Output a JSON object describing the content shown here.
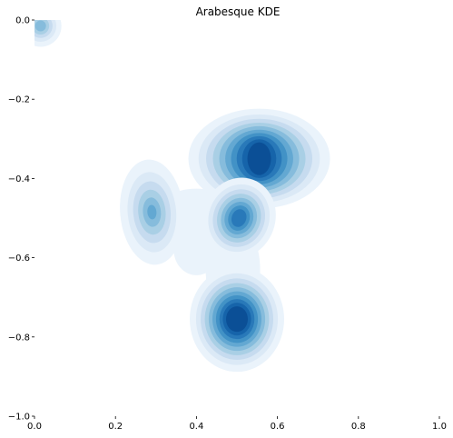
{
  "chart_data": {
    "type": "kde",
    "title": "Arabesque KDE",
    "xlabel": "",
    "ylabel": "",
    "xlim": [
      0.0,
      1.0
    ],
    "ylim": [
      -1.0,
      0.0
    ],
    "x_ticks": [
      "0.0",
      "0.2",
      "0.4",
      "0.6",
      "0.8",
      "1.0"
    ],
    "y_ticks": [
      "0.0",
      "−0.2",
      "−0.4",
      "−0.6",
      "−0.8",
      "−1.0"
    ],
    "x_tick_values": [
      0.0,
      0.2,
      0.4,
      0.6,
      0.8,
      1.0
    ],
    "y_tick_values": [
      0.0,
      -0.2,
      -0.4,
      -0.6,
      -0.8,
      -1.0
    ],
    "grid": false,
    "colormap": "Blues",
    "levels": 10,
    "density_peaks": [
      {
        "x": 0.555,
        "y": -0.35,
        "weight": 1.0
      },
      {
        "x": 0.505,
        "y": -0.5,
        "weight": 0.8
      },
      {
        "x": 0.5,
        "y": -0.755,
        "weight": 0.95
      },
      {
        "x": 0.29,
        "y": -0.485,
        "weight": 0.55
      },
      {
        "x": 0.015,
        "y": -0.015,
        "weight": 0.45
      }
    ]
  }
}
